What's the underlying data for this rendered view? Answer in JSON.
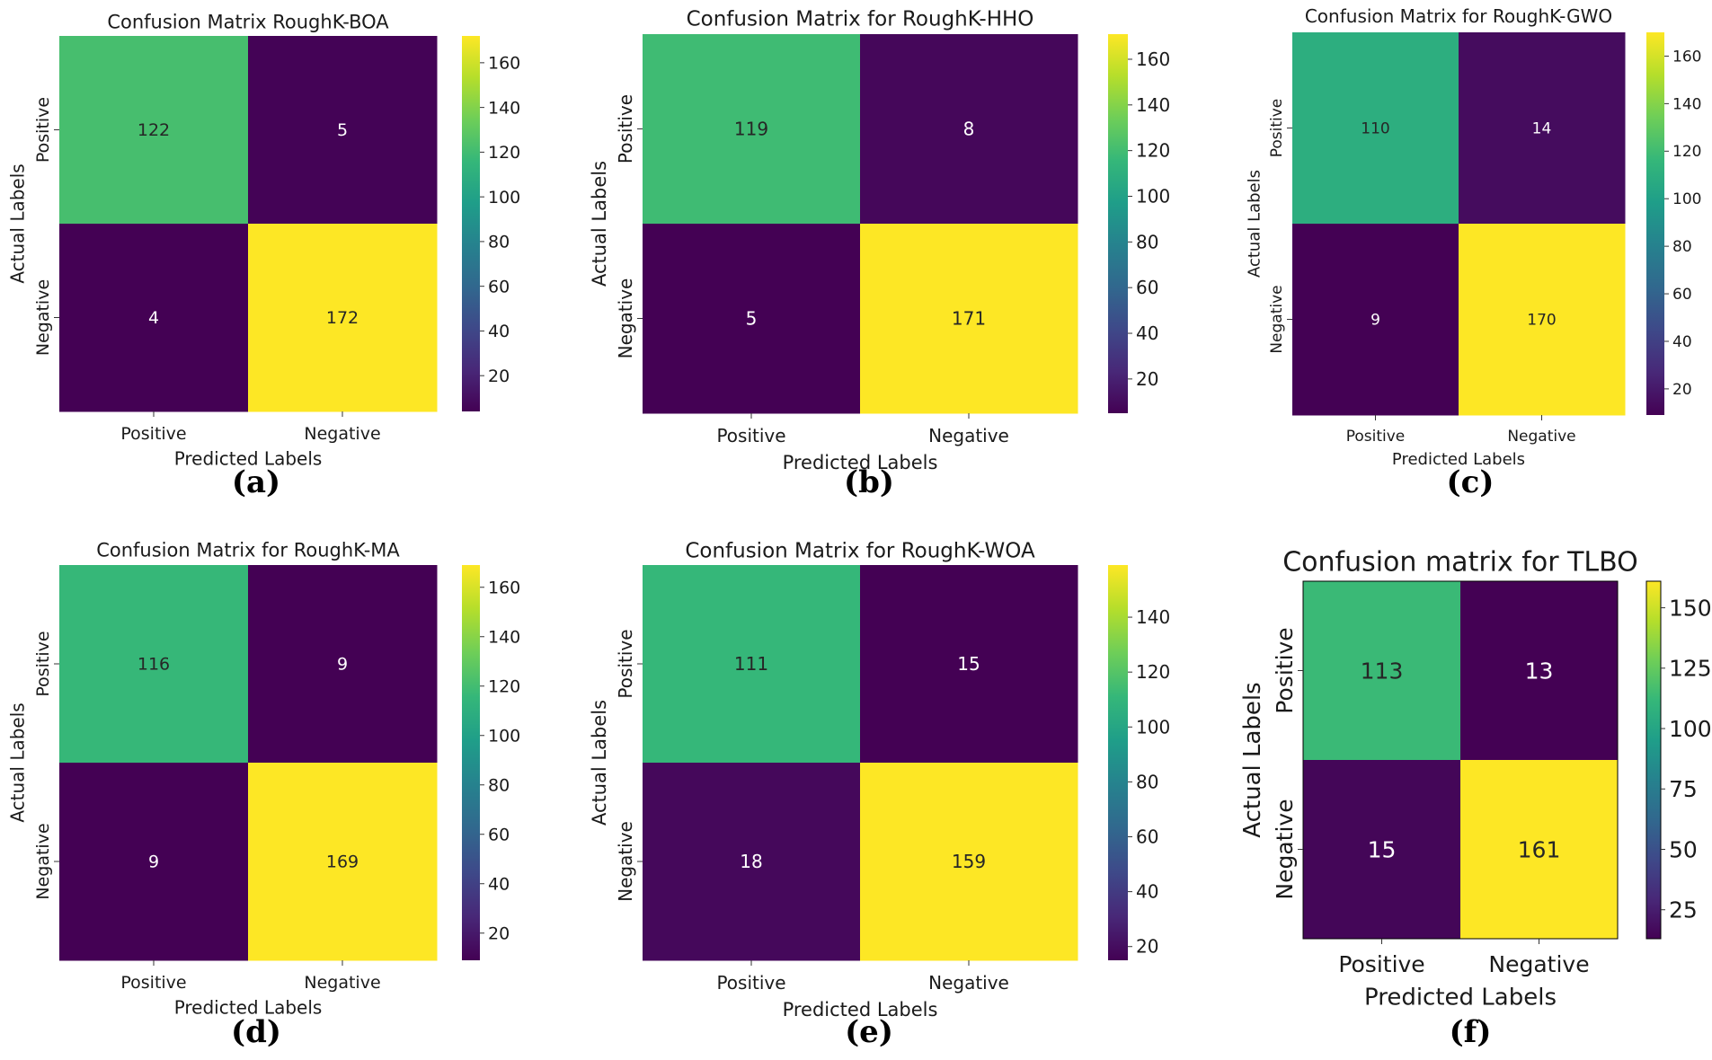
{
  "chart_data": [
    {
      "type": "heatmap",
      "title": "Confusion Matrix RoughK-BOA",
      "xlabel": "Predicted Labels",
      "ylabel": "Actual Labels",
      "x_tick_labels": [
        "Positive",
        "Negative"
      ],
      "y_tick_labels": [
        "Positive",
        "Negative"
      ],
      "values": [
        [
          122,
          5
        ],
        [
          4,
          172
        ]
      ],
      "colorbar_ticks": [
        20,
        40,
        60,
        80,
        100,
        120,
        140,
        160
      ],
      "colormap": "viridis",
      "caption": "a"
    },
    {
      "type": "heatmap",
      "title": "Confusion Matrix for RoughK-HHO",
      "xlabel": "Predicted Labels",
      "ylabel": "Actual Labels",
      "x_tick_labels": [
        "Positive",
        "Negative"
      ],
      "y_tick_labels": [
        "Positive",
        "Negative"
      ],
      "values": [
        [
          119,
          8
        ],
        [
          5,
          171
        ]
      ],
      "colorbar_ticks": [
        20,
        40,
        60,
        80,
        100,
        120,
        140,
        160
      ],
      "colormap": "viridis",
      "caption": "b"
    },
    {
      "type": "heatmap",
      "title": "Confusion Matrix for RoughK-GWO",
      "xlabel": "Predicted Labels",
      "ylabel": "Actual Labels",
      "x_tick_labels": [
        "Positive",
        "Negative"
      ],
      "y_tick_labels": [
        "Positive",
        "Negative"
      ],
      "values": [
        [
          110,
          14
        ],
        [
          9,
          170
        ]
      ],
      "colorbar_ticks": [
        20,
        40,
        60,
        80,
        100,
        120,
        140,
        160
      ],
      "colormap": "viridis",
      "caption": "c"
    },
    {
      "type": "heatmap",
      "title": "Confusion Matrix for RoughK-MA",
      "xlabel": "Predicted Labels",
      "ylabel": "Actual Labels",
      "x_tick_labels": [
        "Positive",
        "Negative"
      ],
      "y_tick_labels": [
        "Positive",
        "Negative"
      ],
      "values": [
        [
          116,
          9
        ],
        [
          9,
          169
        ]
      ],
      "colorbar_ticks": [
        20,
        40,
        60,
        80,
        100,
        120,
        140,
        160
      ],
      "colormap": "viridis",
      "caption": "d"
    },
    {
      "type": "heatmap",
      "title": "Confusion Matrix for RoughK-WOA",
      "xlabel": "Predicted Labels",
      "ylabel": "Actual Labels",
      "x_tick_labels": [
        "Positive",
        "Negative"
      ],
      "y_tick_labels": [
        "Positive",
        "Negative"
      ],
      "values": [
        [
          111,
          15
        ],
        [
          18,
          159
        ]
      ],
      "colorbar_ticks": [
        20,
        40,
        60,
        80,
        100,
        120,
        140
      ],
      "colormap": "viridis",
      "caption": "e"
    },
    {
      "type": "heatmap",
      "title": "Confusion matrix for TLBO",
      "xlabel": "Predicted Labels",
      "ylabel": "Actual Labels",
      "x_tick_labels": [
        "Positive",
        "Negative"
      ],
      "y_tick_labels": [
        "Positive",
        "Negative"
      ],
      "values": [
        [
          113,
          13
        ],
        [
          15,
          161
        ]
      ],
      "colorbar_ticks": [
        25,
        50,
        75,
        100,
        125,
        150
      ],
      "colormap": "viridis",
      "caption": "f"
    }
  ]
}
